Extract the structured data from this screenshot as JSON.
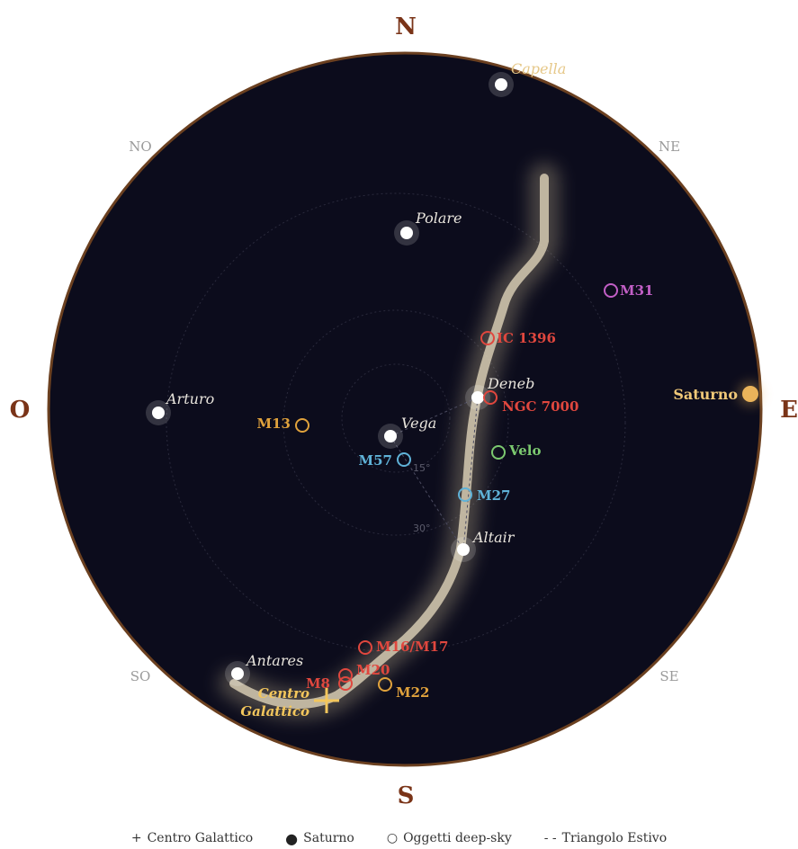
{
  "cardinals": {
    "north": "N",
    "east": "E",
    "south": "S",
    "west": "O",
    "ne": "NE",
    "no": "NO",
    "se": "SE",
    "so": "SO"
  },
  "altitude_rings": {
    "ring_15": "15°",
    "ring_30": "30°"
  },
  "stars": [
    {
      "name": "Capella",
      "color": "#e6c889"
    },
    {
      "name": "Polare",
      "color": "#e8e4dc"
    },
    {
      "name": "Arturo",
      "color": "#e8e4dc"
    },
    {
      "name": "Vega",
      "color": "#e8e4dc"
    },
    {
      "name": "Deneb",
      "color": "#e8e4dc"
    },
    {
      "name": "Altair",
      "color": "#e8e4dc"
    },
    {
      "name": "Antares",
      "color": "#e8e4dc"
    }
  ],
  "deep_sky": [
    {
      "name": "M31",
      "color": "#c25fc6"
    },
    {
      "name": "IC 1396",
      "color": "#e0473e"
    },
    {
      "name": "NGC 7000",
      "color": "#e0473e"
    },
    {
      "name": "M13",
      "color": "#e0a23c"
    },
    {
      "name": "M57",
      "color": "#5fb2d8"
    },
    {
      "name": "Velo",
      "color": "#7bc96f"
    },
    {
      "name": "M27",
      "color": "#5fb2d8"
    },
    {
      "name": "M16/M17",
      "color": "#e0473e"
    },
    {
      "name": "M20",
      "color": "#e0473e"
    },
    {
      "name": "M8",
      "color": "#e0473e"
    },
    {
      "name": "M22",
      "color": "#e0a23c"
    }
  ],
  "planet": {
    "name": "Saturno",
    "color": "#e9b35a"
  },
  "galactic_center": {
    "line1": "Centro",
    "line2": "Galattico",
    "color": "#f3c65c"
  },
  "colors": {
    "sky": "#0c0c1c",
    "horizon_ring": "#6b4020",
    "cardinal_text": "#7a3418",
    "intercardinal_text": "#9a9a9a",
    "milky_way": "#e8dcc0"
  },
  "legend": [
    {
      "symbol": "+",
      "label": "Centro Galattico"
    },
    {
      "symbol": "●",
      "label": "Saturno"
    },
    {
      "symbol": "○",
      "label": "Oggetti deep-sky"
    },
    {
      "symbol": "- -",
      "label": "Triangolo Estivo"
    }
  ]
}
